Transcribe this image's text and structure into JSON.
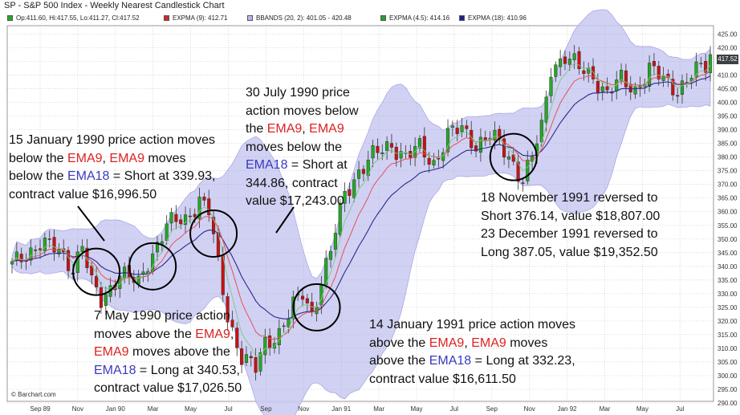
{
  "header": {
    "title": "SP - S&P 500 Index - Weekly Nearest Candlestick Chart"
  },
  "legend": [
    {
      "text": "Op:411.60, Hi:417.55, Lo:411.27, Cl:417.52",
      "color": "#22aa22"
    },
    {
      "text": "EXPMA (9): 412.71",
      "color": "#d62728"
    },
    {
      "text": "BBANDS (20, 2): 401.05 - 420.48",
      "color": "#b8b8ee"
    },
    {
      "text": "EXPMA (4.5): 414.16",
      "color": "#2ca02c"
    },
    {
      "text": "EXPMA (18): 410.96",
      "color": "#1f1f8f"
    }
  ],
  "credit": "© Barchart.com",
  "last_price": "417.52",
  "annotations": {
    "a1": {
      "l1": "15 January 1990 price action moves",
      "l2a": "below the ",
      "l2b": "EMA9",
      "l2c": ", ",
      "l2d": "EMA9",
      "l2e": " moves",
      "l3a": "below the ",
      "l3b": "EMA18",
      "l3c": " = Short at 339.93,",
      "l4": "contract value $16,996.50"
    },
    "a2": {
      "l1": "30 July 1990 price",
      "l2": "action moves below",
      "l3a": "the ",
      "l3b": "EMA9",
      "l3c": ", ",
      "l3d": "EMA9",
      "l4": "moves below the",
      "l5a": "EMA18",
      "l5b": " = Short at",
      "l6": "344.86, contract",
      "l7": "value $17,243.00"
    },
    "a3": {
      "l1": "7 May 1990 price action",
      "l2a": "moves above the ",
      "l2b": "EMA9",
      "l2c": ",",
      "l3a": "EMA9",
      "l3b": " moves above the",
      "l4a": "EMA18",
      "l4b": " = Long at 340.53,",
      "l5": "contract value $17,026.50"
    },
    "a4": {
      "l1": "14 January 1991 price action moves",
      "l2a": "above the ",
      "l2b": "EMA9",
      "l2c": ", ",
      "l2d": "EMA9",
      "l2e": " moves",
      "l3a": "above the ",
      "l3b": "EMA18",
      "l3c": " = Long at 332.23,",
      "l4": "contract value $16,611.50"
    },
    "a5": {
      "l1": "18 November  1991 reversed to",
      "l2": "Short 376.14, value $18,807.00",
      "l3": "23 December 1991 reversed to",
      "l4": "Long 387.05, value $19,352.50"
    }
  },
  "chart_data": {
    "type": "candlestick",
    "title": "SP - S&P 500 Index - Weekly Nearest Candlestick Chart",
    "x_ticks": [
      "Sep 89",
      "Nov",
      "Jan 90",
      "Mar",
      "May",
      "Jul",
      "Sep",
      "Nov",
      "Jan 91",
      "Mar",
      "May",
      "Jul",
      "Sep",
      "Nov",
      "Jan 92",
      "Mar",
      "May",
      "Jul"
    ],
    "y_ticks": [
      290.0,
      295.0,
      300.0,
      305.0,
      310.0,
      315.0,
      320.0,
      325.0,
      330.0,
      335.0,
      340.0,
      345.0,
      350.0,
      355.0,
      360.0,
      365.0,
      370.0,
      375.0,
      380.0,
      385.0,
      390.0,
      395.0,
      400.0,
      405.0,
      410.0,
      415.0,
      420.0,
      425.0
    ],
    "ylim": [
      290,
      428
    ],
    "y_axis": "right",
    "grid": true,
    "anchors": [
      [
        0,
        340
      ],
      [
        6,
        349
      ],
      [
        10,
        345
      ],
      [
        13,
        340
      ],
      [
        15,
        348
      ],
      [
        17,
        333
      ],
      [
        19,
        327
      ],
      [
        23,
        338
      ],
      [
        27,
        333
      ],
      [
        29,
        342
      ],
      [
        33,
        355
      ],
      [
        37,
        357
      ],
      [
        40,
        365
      ],
      [
        42,
        360
      ],
      [
        44,
        340
      ],
      [
        46,
        322
      ],
      [
        49,
        307
      ],
      [
        52,
        302
      ],
      [
        54,
        312
      ],
      [
        57,
        316
      ],
      [
        60,
        325
      ],
      [
        62,
        330
      ],
      [
        64,
        323
      ],
      [
        66,
        335
      ],
      [
        68,
        345
      ],
      [
        71,
        367
      ],
      [
        74,
        375
      ],
      [
        77,
        380
      ],
      [
        81,
        385
      ],
      [
        84,
        380
      ],
      [
        87,
        383
      ],
      [
        90,
        378
      ],
      [
        93,
        388
      ],
      [
        96,
        390
      ],
      [
        99,
        385
      ],
      [
        102,
        388
      ],
      [
        105,
        382
      ],
      [
        107,
        378
      ],
      [
        109,
        372
      ],
      [
        111,
        380
      ],
      [
        113,
        390
      ],
      [
        115,
        413
      ],
      [
        118,
        417
      ],
      [
        121,
        412
      ],
      [
        124,
        410
      ],
      [
        127,
        403
      ],
      [
        130,
        408
      ],
      [
        133,
        405
      ],
      [
        136,
        412
      ],
      [
        139,
        408
      ],
      [
        142,
        405
      ],
      [
        145,
        410
      ],
      [
        148,
        413
      ],
      [
        150,
        417
      ]
    ],
    "last": {
      "open": 411.6,
      "high": 417.55,
      "low": 411.27,
      "close": 417.52
    },
    "series": [
      {
        "name": "EXPMA (9)",
        "last": 412.71,
        "color": "#d62728"
      },
      {
        "name": "BBANDS (20, 2)",
        "lower": 401.05,
        "upper": 420.48,
        "color": "#b8b8ee"
      },
      {
        "name": "EXPMA (4.5)",
        "last": 414.16,
        "color": "#2ca02c"
      },
      {
        "name": "EXPMA (18)",
        "last": 410.96,
        "color": "#1f1f8f"
      }
    ],
    "circled_events": [
      {
        "index": 18,
        "value": 338
      },
      {
        "index": 30,
        "value": 340
      },
      {
        "index": 43,
        "value": 352
      },
      {
        "index": 65,
        "value": 325
      },
      {
        "index": 107,
        "value": 380
      }
    ]
  }
}
